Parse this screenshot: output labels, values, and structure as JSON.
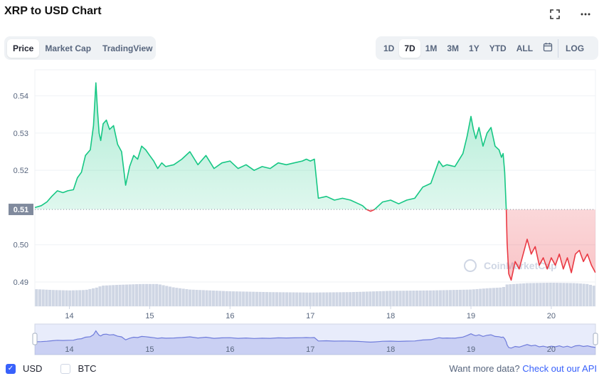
{
  "header": {
    "title": "XRP to USD Chart",
    "fullscreen_icon": "fullscreen-icon",
    "more_icon": "more-horizontal-icon"
  },
  "chart_tabs": [
    {
      "label": "Price",
      "active": true
    },
    {
      "label": "Market Cap",
      "active": false
    },
    {
      "label": "TradingView",
      "active": false
    }
  ],
  "range_tabs": [
    {
      "label": "1D",
      "active": false
    },
    {
      "label": "7D",
      "active": true
    },
    {
      "label": "1M",
      "active": false
    },
    {
      "label": "3M",
      "active": false
    },
    {
      "label": "1Y",
      "active": false
    },
    {
      "label": "YTD",
      "active": false
    },
    {
      "label": "ALL",
      "active": false
    }
  ],
  "calendar_icon": "calendar-icon",
  "log_label": "LOG",
  "watermark": "CoinMarketCap",
  "colors": {
    "up": "#16c784",
    "down": "#ea3943",
    "volume": "#cfd6e4",
    "navigator": "#6f7cdb",
    "baseline_tag": "#808a9d"
  },
  "footer": {
    "currencies": [
      {
        "label": "USD",
        "checked": true
      },
      {
        "label": "BTC",
        "checked": false
      }
    ],
    "more_data_text": "Want more data?",
    "api_link": "Check out our API"
  },
  "chart_data": {
    "type": "area",
    "title": "XRP to USD Chart",
    "xlabel": "",
    "ylabel": "",
    "x_ticks": [
      "14",
      "15",
      "16",
      "17",
      "18",
      "19",
      "20"
    ],
    "x_tick_values": [
      14,
      15,
      16,
      17,
      18,
      19,
      20
    ],
    "xlim": [
      13.57,
      20.55
    ],
    "y_ticks": [
      "0.54",
      "0.53",
      "0.52",
      "0.50",
      "0.49"
    ],
    "y_tick_values": [
      0.54,
      0.53,
      0.52,
      0.5,
      0.49
    ],
    "ylim": [
      0.4835,
      0.547
    ],
    "baseline": 0.5095,
    "baseline_label": "0.51",
    "grid": true,
    "legend": "none",
    "series": [
      {
        "x": [
          13.57,
          13.65,
          13.72,
          13.78,
          13.85,
          13.92,
          13.98,
          14.05,
          14.1,
          14.15,
          14.2,
          14.26,
          14.3,
          14.33,
          14.35,
          14.37,
          14.39,
          14.42,
          14.46,
          14.5,
          14.55,
          14.6,
          14.65,
          14.7,
          14.75,
          14.8,
          14.85,
          14.9,
          14.95,
          15.0,
          15.05,
          15.1,
          15.15,
          15.2,
          15.3,
          15.4,
          15.5,
          15.6,
          15.7,
          15.8,
          15.9,
          16.0,
          16.1,
          16.2,
          16.3,
          16.4,
          16.5,
          16.6,
          16.7,
          16.8,
          16.9,
          16.95,
          17.0,
          17.05,
          17.1,
          17.2,
          17.3,
          17.4,
          17.5,
          17.6,
          17.65,
          17.7,
          17.75,
          17.8,
          17.85,
          17.9,
          18.0,
          18.1,
          18.2,
          18.3,
          18.4,
          18.5,
          18.6,
          18.65,
          18.7,
          18.8,
          18.9,
          18.95,
          19.0,
          19.03,
          19.06,
          19.1,
          19.15,
          19.2,
          19.25,
          19.3,
          19.35,
          19.38,
          19.4,
          19.42,
          19.44,
          19.45,
          19.47,
          19.5,
          19.55,
          19.6,
          19.65,
          19.7,
          19.75,
          19.8,
          19.85,
          19.9,
          19.95,
          20.0,
          20.05,
          20.1,
          20.15,
          20.2,
          20.25,
          20.3,
          20.35,
          20.4,
          20.45,
          20.5,
          20.55
        ],
        "y": [
          0.51,
          0.5105,
          0.5115,
          0.513,
          0.5145,
          0.514,
          0.5145,
          0.5148,
          0.518,
          0.5195,
          0.524,
          0.5255,
          0.532,
          0.5435,
          0.536,
          0.53,
          0.528,
          0.5325,
          0.5335,
          0.531,
          0.532,
          0.527,
          0.525,
          0.516,
          0.521,
          0.524,
          0.523,
          0.5265,
          0.5255,
          0.524,
          0.5225,
          0.5205,
          0.522,
          0.521,
          0.5215,
          0.523,
          0.525,
          0.5215,
          0.524,
          0.5205,
          0.522,
          0.5225,
          0.5205,
          0.5215,
          0.52,
          0.521,
          0.5205,
          0.522,
          0.5215,
          0.522,
          0.5225,
          0.523,
          0.5225,
          0.523,
          0.5125,
          0.513,
          0.512,
          0.5125,
          0.512,
          0.511,
          0.5105,
          0.5095,
          0.509,
          0.5095,
          0.5105,
          0.5115,
          0.512,
          0.511,
          0.512,
          0.5125,
          0.5155,
          0.5165,
          0.5225,
          0.521,
          0.5215,
          0.521,
          0.5245,
          0.529,
          0.5345,
          0.531,
          0.5285,
          0.5315,
          0.5265,
          0.53,
          0.5315,
          0.5265,
          0.5255,
          0.5235,
          0.5245,
          0.5195,
          0.509,
          0.5005,
          0.4922,
          0.4905,
          0.4955,
          0.4935,
          0.4975,
          0.5015,
          0.4975,
          0.4995,
          0.4945,
          0.4965,
          0.4935,
          0.4965,
          0.4945,
          0.4975,
          0.4935,
          0.4965,
          0.4925,
          0.4975,
          0.4985,
          0.4955,
          0.4975,
          0.4945,
          0.4925
        ]
      }
    ],
    "volume": {
      "x": [
        13.57,
        13.8,
        14.0,
        14.2,
        14.35,
        14.4,
        14.6,
        14.9,
        15.1,
        15.3,
        15.5,
        16.0,
        16.5,
        17.0,
        17.5,
        18.0,
        18.5,
        19.0,
        19.2,
        19.4,
        19.45,
        19.7,
        20.0,
        20.3,
        20.45,
        20.55
      ],
      "values": [
        40,
        38,
        37,
        38,
        44,
        48,
        50,
        52,
        52,
        44,
        39,
        35,
        33,
        32,
        33,
        36,
        37,
        39,
        42,
        44,
        51,
        54,
        55,
        54,
        52,
        47
      ],
      "ylim": [
        0,
        100
      ]
    }
  }
}
